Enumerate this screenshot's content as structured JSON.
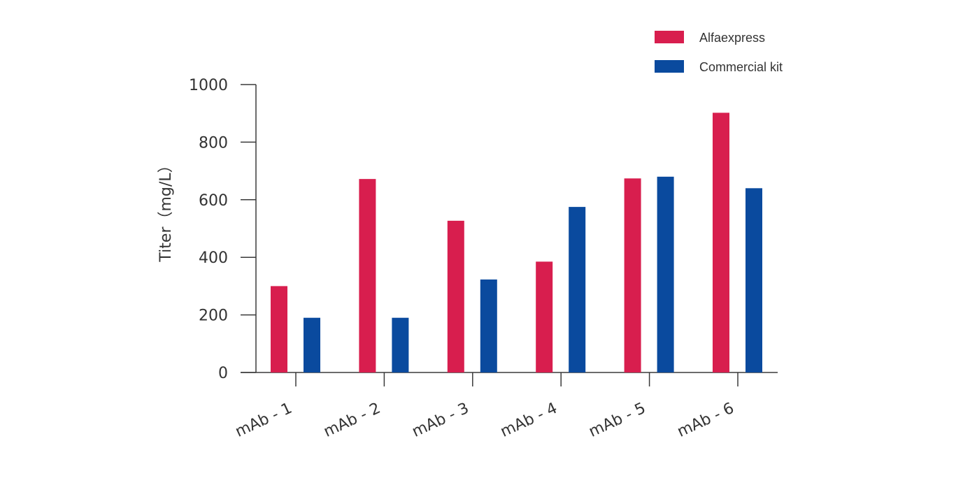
{
  "chart_data": {
    "type": "bar",
    "title": "",
    "xlabel": "",
    "ylabel": "Titer（mg/L）",
    "categories": [
      "mAb - 1",
      "mAb - 2",
      "mAb - 3",
      "mAb - 4",
      "mAb - 5",
      "mAb - 6"
    ],
    "series": [
      {
        "name": "Alfaexpress",
        "color": "#d81e4e",
        "values": [
          300,
          672,
          527,
          385,
          674,
          902
        ]
      },
      {
        "name": "Commercial kit",
        "color": "#0a4a9e",
        "values": [
          190,
          190,
          323,
          575,
          680,
          640
        ]
      }
    ],
    "ylim": [
      0,
      1000
    ],
    "yticks": [
      0,
      200,
      400,
      600,
      800,
      1000
    ],
    "grid": false,
    "legend": "top-right"
  }
}
